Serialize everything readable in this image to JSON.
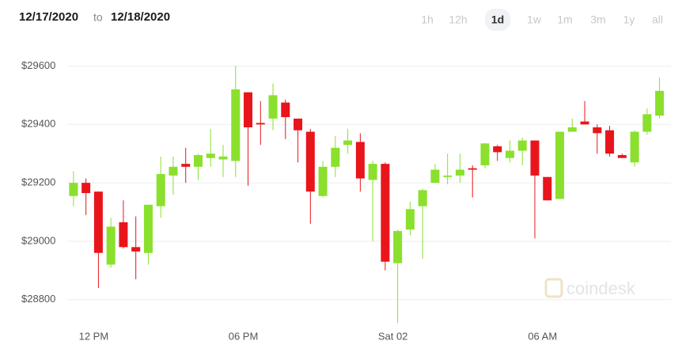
{
  "header": {
    "from": "12/17/2020",
    "to_label": "to",
    "to": "12/18/2020"
  },
  "range_buttons": [
    "1h",
    "12h",
    "1d",
    "1w",
    "1m",
    "3m",
    "1y",
    "all"
  ],
  "active_range": "1d",
  "watermark": "coindesk",
  "chart_data": {
    "type": "candlestick",
    "categories": [
      null,
      null,
      "12 PM",
      null,
      null,
      null,
      null,
      null,
      null,
      null,
      null,
      null,
      null,
      null,
      "06 PM",
      null,
      null,
      null,
      null,
      null,
      null,
      null,
      null,
      null,
      null,
      null,
      "Sat 02",
      null,
      null,
      null,
      null,
      null,
      null,
      null,
      null,
      null,
      null,
      null,
      "06 AM",
      null,
      null,
      null,
      null,
      null,
      null,
      null,
      null,
      null
    ],
    "open": [
      29155,
      29200,
      29170,
      28920,
      29065,
      28980,
      28960,
      29120,
      29225,
      29265,
      29255,
      29285,
      29280,
      29275,
      29510,
      29405,
      29420,
      29475,
      29420,
      29375,
      29155,
      29255,
      29330,
      29340,
      29210,
      29265,
      28925,
      29040,
      29120,
      29200,
      29220,
      29225,
      29250,
      29260,
      29325,
      29285,
      29310,
      29345,
      29220,
      29145,
      29375,
      29410,
      29390,
      29380,
      29295,
      29270,
      29375,
      29430
    ],
    "high": [
      29240,
      29215,
      29170,
      29080,
      29140,
      29085,
      29125,
      29290,
      29290,
      29320,
      29300,
      29385,
      29330,
      29600,
      29510,
      29480,
      29540,
      29485,
      29420,
      29385,
      29275,
      29360,
      29385,
      29370,
      29275,
      29270,
      29040,
      29135,
      29180,
      29265,
      29300,
      29300,
      29260,
      29335,
      29330,
      29345,
      29355,
      29345,
      29220,
      29375,
      29420,
      29480,
      29400,
      29395,
      29300,
      29380,
      29455,
      29560
    ],
    "low": [
      29120,
      29090,
      28840,
      28910,
      28975,
      28870,
      28920,
      29080,
      29160,
      29200,
      29210,
      29255,
      29220,
      29220,
      29190,
      29330,
      29380,
      29350,
      29270,
      29060,
      29150,
      29220,
      29300,
      29170,
      29000,
      28900,
      28720,
      29020,
      28940,
      29200,
      29195,
      29200,
      29150,
      29250,
      29275,
      29270,
      29260,
      29010,
      29140,
      29145,
      29375,
      29400,
      29300,
      29290,
      29285,
      29255,
      29365,
      29420
    ],
    "close": [
      29200,
      29165,
      28960,
      29050,
      28980,
      28965,
      29125,
      29230,
      29255,
      29255,
      29295,
      29300,
      29290,
      29520,
      29390,
      29400,
      29500,
      29425,
      29380,
      29170,
      29255,
      29320,
      29345,
      29215,
      29265,
      28930,
      29035,
      29110,
      29175,
      29245,
      29225,
      29245,
      29245,
      29335,
      29305,
      29310,
      29345,
      29225,
      29140,
      29375,
      29390,
      29400,
      29370,
      29300,
      29285,
      29375,
      29435,
      29515
    ],
    "up_color": "#8ae02c",
    "down_color": "#e8151b",
    "ylim": [
      28710,
      29650
    ],
    "yticks": [
      {
        "value": 28800,
        "label": "$28800"
      },
      {
        "value": 29000,
        "label": "$29000"
      },
      {
        "value": 29200,
        "label": "$29200"
      },
      {
        "value": 29400,
        "label": "$29400"
      },
      {
        "value": 29600,
        "label": "$29600"
      }
    ],
    "grid": true
  }
}
